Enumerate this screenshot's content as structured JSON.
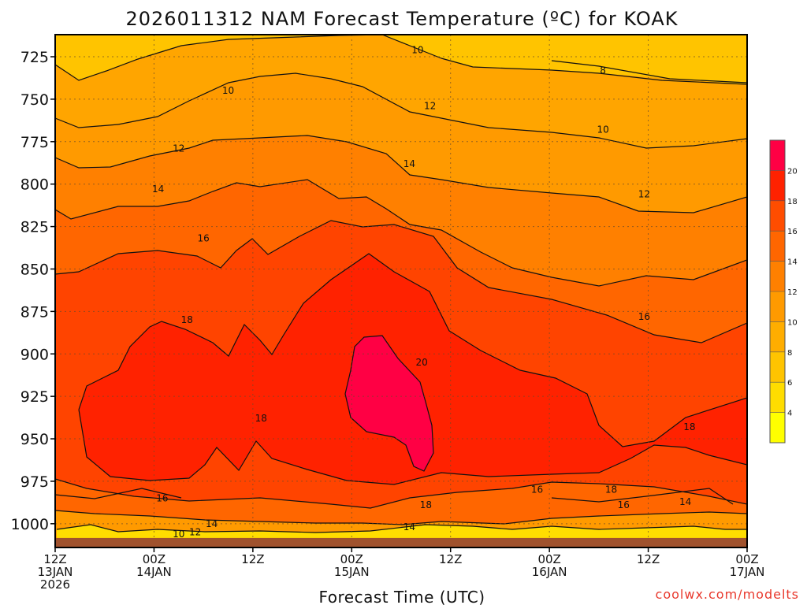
{
  "chart_data": {
    "type": "contour",
    "title": "2026011312 NAM Forecast Temperature (ºC) for KOAK",
    "xlabel": "Forecast Time (UTC)",
    "ylabel": "",
    "credit": "coolwx.com/modelts",
    "x_ticks": [
      {
        "hour": 0,
        "line1": "12Z",
        "line2": "13JAN",
        "line3": "2026"
      },
      {
        "hour": 12,
        "line1": "00Z",
        "line2": "14JAN"
      },
      {
        "hour": 24,
        "line1": "12Z"
      },
      {
        "hour": 36,
        "line1": "00Z",
        "line2": "15JAN"
      },
      {
        "hour": 48,
        "line1": "12Z"
      },
      {
        "hour": 60,
        "line1": "00Z",
        "line2": "16JAN"
      },
      {
        "hour": 72,
        "line1": "12Z"
      },
      {
        "hour": 84,
        "line1": "00Z",
        "line2": "17JAN"
      }
    ],
    "xlim": [
      0,
      84
    ],
    "y_ticks": [
      725,
      750,
      775,
      800,
      825,
      850,
      875,
      900,
      925,
      950,
      975,
      1000
    ],
    "ylim": [
      712,
      1014
    ],
    "grid": true,
    "colorbar": {
      "ticks": [
        4,
        6,
        8,
        10,
        12,
        14,
        16,
        18,
        20
      ],
      "range": [
        2,
        22
      ],
      "colors": [
        "#ffff00",
        "#ffdd00",
        "#ffc400",
        "#ffad00",
        "#ff9a00",
        "#ff8000",
        "#ff6600",
        "#ff4d00",
        "#ff2200",
        "#ff0044"
      ]
    },
    "contour_levels": [
      8,
      10,
      12,
      14,
      16,
      18,
      20
    ],
    "contour_labels": [
      {
        "text": "10",
        "hour": 44.0,
        "p": 721
      },
      {
        "text": "8",
        "hour": 66.5,
        "p": 733
      },
      {
        "text": "10",
        "hour": 21.0,
        "p": 745
      },
      {
        "text": "12",
        "hour": 45.5,
        "p": 754
      },
      {
        "text": "10",
        "hour": 66.5,
        "p": 768
      },
      {
        "text": "12",
        "hour": 15.0,
        "p": 779
      },
      {
        "text": "14",
        "hour": 43.0,
        "p": 788
      },
      {
        "text": "14",
        "hour": 12.5,
        "p": 803
      },
      {
        "text": "12",
        "hour": 71.5,
        "p": 806
      },
      {
        "text": "16",
        "hour": 18.0,
        "p": 832
      },
      {
        "text": "16",
        "hour": 71.5,
        "p": 878
      },
      {
        "text": "18",
        "hour": 16.0,
        "p": 880
      },
      {
        "text": "20",
        "hour": 44.5,
        "p": 905
      },
      {
        "text": "18",
        "hour": 25.0,
        "p": 938
      },
      {
        "text": "18",
        "hour": 77.0,
        "p": 943
      },
      {
        "text": "16",
        "hour": 13.0,
        "p": 985
      },
      {
        "text": "16",
        "hour": 58.5,
        "p": 980
      },
      {
        "text": "18",
        "hour": 67.5,
        "p": 980
      },
      {
        "text": "18",
        "hour": 45.0,
        "p": 989
      },
      {
        "text": "16",
        "hour": 69.0,
        "p": 989
      },
      {
        "text": "14",
        "hour": 76.5,
        "p": 987
      },
      {
        "text": "14",
        "hour": 19.0,
        "p": 1000
      },
      {
        "text": "14",
        "hour": 43.0,
        "p": 1002
      },
      {
        "text": "10",
        "hour": 15.0,
        "p": 1006
      },
      {
        "text": "12",
        "hour": 17.0,
        "p": 1005
      }
    ],
    "surface_pressure_hpa": 1007
  }
}
